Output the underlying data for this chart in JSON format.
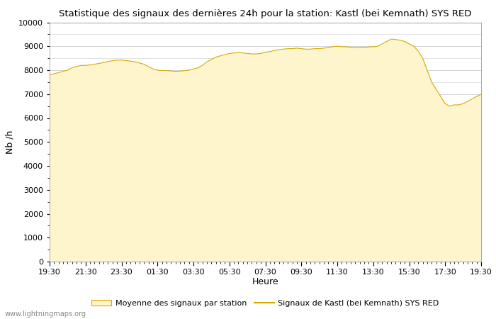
{
  "title": "Statistique des signaux des dernières 24h pour la station: Kastl (bei Kemnath) SYS RED",
  "xlabel": "Heure",
  "ylabel": "Nb /h",
  "fill_color": "#FFF5CC",
  "fill_edge_color": "#D4AA00",
  "line_color": "#D4AA00",
  "background_color": "#FFFFFF",
  "grid_color": "#CCCCCC",
  "ylim": [
    0,
    10000
  ],
  "x_tick_positions": [
    0,
    4,
    8,
    12,
    16,
    20,
    24,
    28,
    32,
    36,
    40,
    44,
    48
  ],
  "x_tick_labels": [
    "19:30",
    "21:30",
    "23:30",
    "01:30",
    "03:30",
    "05:30",
    "07:30",
    "09:30",
    "11:30",
    "13:30",
    "15:30",
    "17:30",
    "19:30"
  ],
  "legend_fill_label": "Moyenne des signaux par station",
  "legend_line_label": "Signaux de Kastl (bei Kemnath) SYS RED",
  "watermark": "www.lightningmaps.org",
  "x_values": [
    0,
    0.5,
    1,
    1.5,
    2,
    2.5,
    3,
    3.5,
    4,
    4.5,
    5,
    5.5,
    6,
    6.5,
    7,
    7.5,
    8,
    8.5,
    9,
    9.5,
    10,
    10.5,
    11,
    11.5,
    12,
    12.5,
    13,
    13.5,
    14,
    14.5,
    15,
    15.5,
    16,
    16.5,
    17,
    17.5,
    18,
    18.5,
    19,
    19.5,
    20,
    20.5,
    21,
    21.5,
    22,
    22.5,
    23,
    23.5,
    24,
    24.5,
    25,
    25.5,
    26,
    26.5,
    27,
    27.5,
    28,
    28.5,
    29,
    29.5,
    30,
    30.5,
    31,
    31.5,
    32,
    32.5,
    33,
    33.5,
    34,
    34.5,
    35,
    35.5,
    36,
    36.5,
    37,
    37.5,
    38,
    38.5,
    39,
    39.5,
    40,
    40.5,
    41,
    41.5,
    42,
    42.5,
    43,
    43.5,
    44,
    44.5,
    45,
    45.5,
    46,
    46.5,
    47,
    47.5,
    48
  ],
  "y_values": [
    7800,
    7850,
    7900,
    7950,
    8000,
    8100,
    8150,
    8200,
    8200,
    8220,
    8250,
    8280,
    8320,
    8360,
    8400,
    8420,
    8420,
    8400,
    8380,
    8350,
    8300,
    8250,
    8150,
    8050,
    8000,
    7980,
    7980,
    7970,
    7950,
    7960,
    7980,
    8000,
    8050,
    8100,
    8200,
    8350,
    8450,
    8550,
    8600,
    8650,
    8700,
    8720,
    8730,
    8720,
    8700,
    8680,
    8680,
    8700,
    8750,
    8780,
    8820,
    8860,
    8880,
    8900,
    8900,
    8920,
    8900,
    8880,
    8880,
    8900,
    8900,
    8920,
    8950,
    8980,
    9000,
    8980,
    8980,
    8960,
    8950,
    8950,
    8960,
    8970,
    8980,
    9000,
    9100,
    9200,
    9300,
    9280,
    9250,
    9200,
    9100,
    9000,
    8800,
    8500,
    8000,
    7500,
    7200,
    6900,
    6600,
    6500,
    6550,
    6550,
    6600,
    6700,
    6800,
    6900,
    7000
  ]
}
